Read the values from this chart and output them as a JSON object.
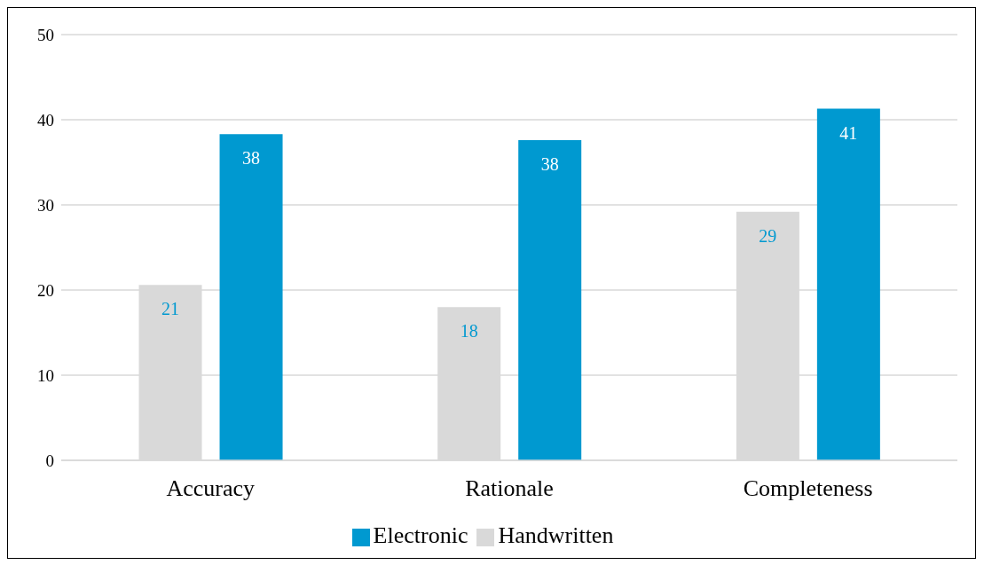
{
  "chart_data": {
    "type": "bar",
    "categories": [
      "Accuracy",
      "Rationale",
      "Completeness"
    ],
    "series": [
      {
        "name": "Handwritten",
        "color": "#d9d9d9",
        "values": [
          20.6,
          18,
          29.2
        ],
        "value_labels": [
          "21",
          "18",
          "29"
        ]
      },
      {
        "name": "Electronic",
        "color": "#0099d0",
        "values": [
          38.3,
          37.6,
          41.3
        ],
        "value_labels": [
          "38",
          "38",
          "41"
        ]
      }
    ],
    "ylim": [
      0,
      50
    ],
    "yticks": [
      0,
      10,
      20,
      30,
      40,
      50
    ],
    "grid": "y",
    "legend": "bottom"
  }
}
